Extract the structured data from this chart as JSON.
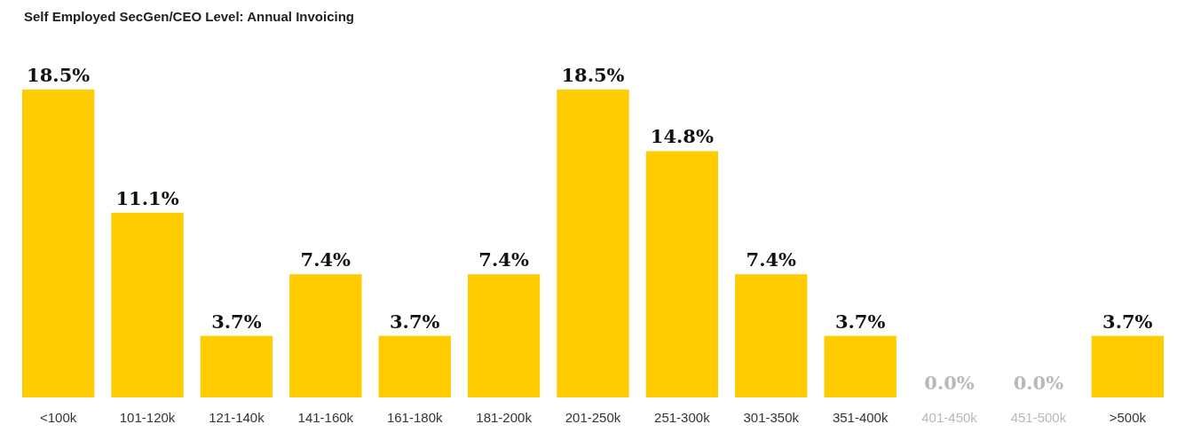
{
  "chart_data": {
    "type": "bar",
    "title": "Self Employed SecGen/CEO Level: Annual Invoicing",
    "categories": [
      "<100k",
      "101-120k",
      "121-140k",
      "141-160k",
      "161-180k",
      "181-200k",
      "201-250k",
      "251-300k",
      "301-350k",
      "351-400k",
      "401-450k",
      "451-500k",
      ">500k"
    ],
    "values": [
      18.5,
      11.1,
      3.7,
      7.4,
      3.7,
      7.4,
      18.5,
      14.8,
      7.4,
      3.7,
      0,
      0,
      3.7
    ],
    "value_labels": [
      "18.5%",
      "11.1%",
      "3.7%",
      "7.4%",
      "3.7%",
      "7.4%",
      "18.5%",
      "14.8%",
      "7.4%",
      "3.7%",
      "0.0%",
      "0.0%",
      "3.7%"
    ],
    "color": "#fecc00"
  }
}
